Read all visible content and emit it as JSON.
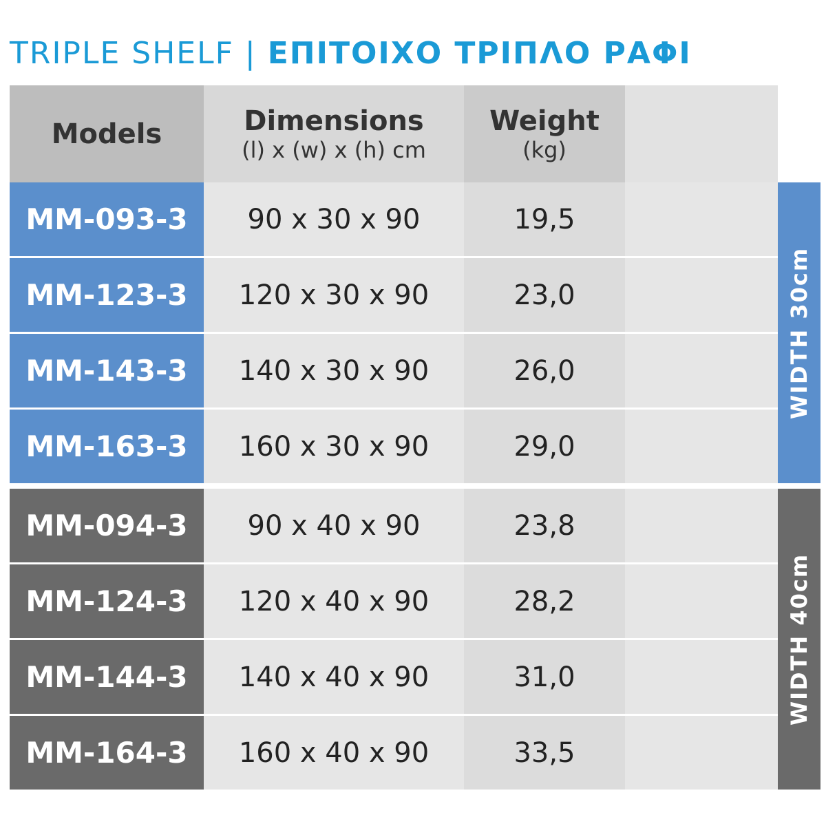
{
  "title": {
    "en": "TRIPLE SHELF",
    "separator": "|",
    "gr": "ΕΠΙΤΟΙΧΟ ΤΡΙΠΛΟ ΡΑΦΙ"
  },
  "table": {
    "header": {
      "models": "Models",
      "dimensions": "Dimensions",
      "dimensions_unit": "(l) x (w) x (h) cm",
      "weight": "Weight",
      "weight_unit": "(kg)"
    },
    "groups": [
      {
        "label": "WIDTH 30cm",
        "rows": [
          [
            "MM-093-3",
            "90 x 30 x 90",
            "19,5"
          ],
          [
            "MM-123-3",
            "120 x 30 x 90",
            "23,0"
          ],
          [
            "MM-143-3",
            "140 x 30 x 90",
            "26,0"
          ],
          [
            "MM-163-3",
            "160 x 30 x 90",
            "29,0"
          ]
        ]
      },
      {
        "label": "WIDTH 40cm",
        "rows": [
          [
            "MM-094-3",
            "90 x 40 x 90",
            "23,8"
          ],
          [
            "MM-124-3",
            "120 x 40 x 90",
            "28,2"
          ],
          [
            "MM-144-3",
            "140 x 40 x 90",
            "31,0"
          ],
          [
            "MM-164-3",
            "160 x 40 x 90",
            "33,5"
          ]
        ]
      }
    ]
  }
}
